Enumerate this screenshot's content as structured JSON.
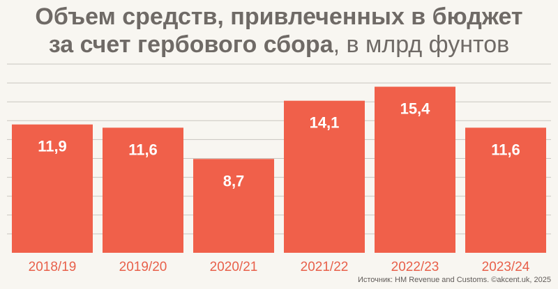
{
  "title": {
    "line1": "Объем средств, привлеченных в бюджет",
    "line2_bold": "за счет гербового сбора",
    "line2_rest": ", в млрд фунтов"
  },
  "source": "Источник: HM Revenue and Customs. ©akcent.uk, 2025",
  "colors": {
    "bar": "#f0604a",
    "bar_label": "#ffffff",
    "axis_label": "#e8604a",
    "grid": "#c9c5bf",
    "background": "#f8f6f1",
    "title": "#6f6a66"
  },
  "chart_data": {
    "type": "bar",
    "categories": [
      "2018/19",
      "2019/20",
      "2020/21",
      "2021/22",
      "2022/23",
      "2023/24"
    ],
    "values": [
      11.9,
      11.6,
      8.7,
      14.1,
      15.4,
      11.6
    ],
    "data_labels": [
      "11,9",
      "11,6",
      "8,7",
      "14,1",
      "15,4",
      "11,6"
    ],
    "ylim": [
      0,
      17.5
    ],
    "grid_step": 1.75,
    "grid": true,
    "legend": "none"
  }
}
